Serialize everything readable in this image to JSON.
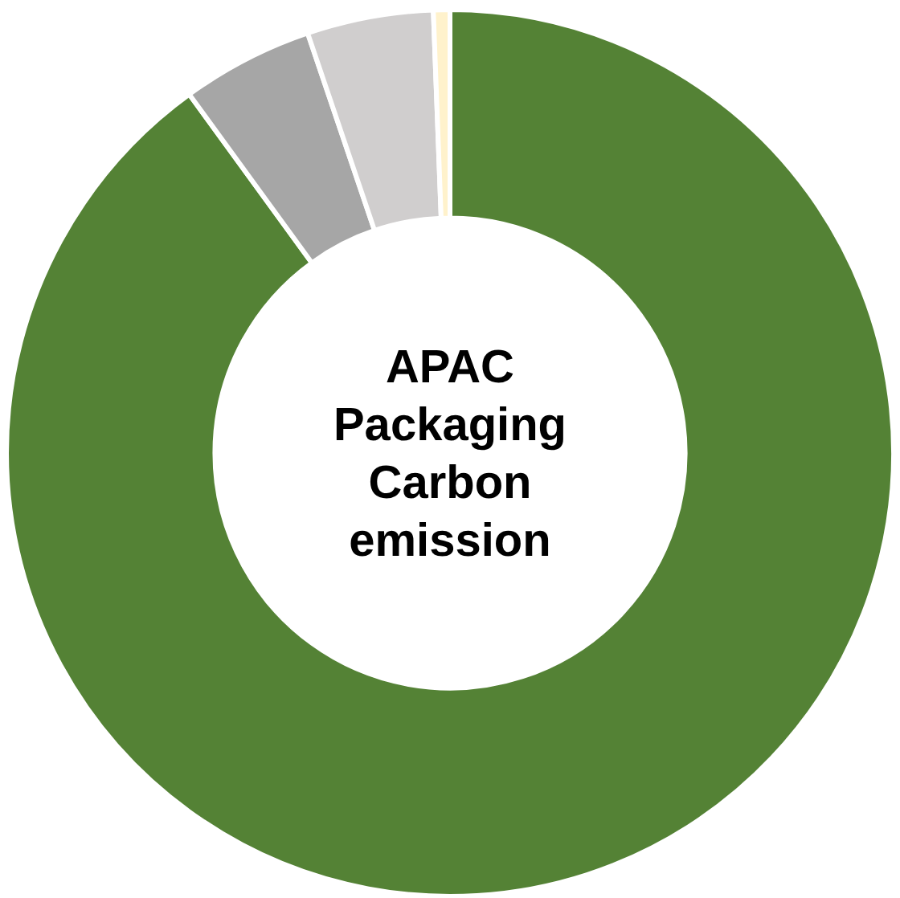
{
  "chart_data": {
    "type": "donut",
    "title": "APAC Packaging Carbon emission",
    "categories": [
      null,
      null,
      null,
      null
    ],
    "values": [
      90,
      4.8,
      4.6,
      0.6
    ],
    "colors": [
      "#548235",
      "#a6a6a6",
      "#d0cece",
      "#fff2cc"
    ]
  }
}
